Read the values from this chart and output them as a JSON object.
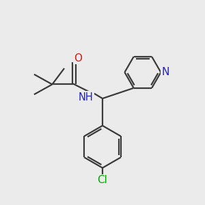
{
  "bg_color": "#ebebeb",
  "bond_color": "#3a3a3a",
  "N_color": "#2020cc",
  "O_color": "#cc2020",
  "Cl_color": "#00aa00",
  "O_label": "O",
  "Cl_label": "Cl",
  "N_ring_label": "N",
  "NH_label": "NH",
  "H_label": "H",
  "line_width": 1.6,
  "font_size": 10.5
}
